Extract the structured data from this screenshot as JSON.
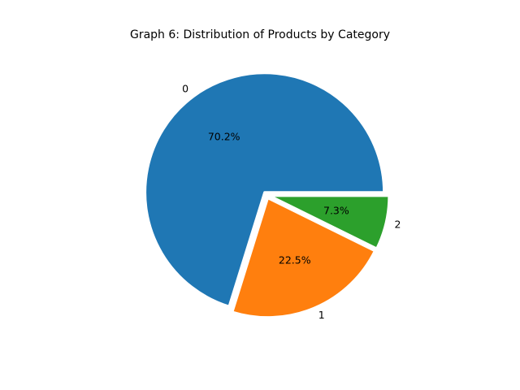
{
  "chart_data": {
    "type": "pie",
    "title": "Graph 6: Distribution of Products by Category",
    "labels": [
      "0",
      "1",
      "2"
    ],
    "values": [
      70.2,
      22.5,
      7.3
    ],
    "percent_labels": [
      "70.2%",
      "22.5%",
      "7.3%"
    ],
    "colors": [
      "#1f77b4",
      "#ff7f0e",
      "#2ca02c"
    ],
    "start_angle_deg": 0,
    "direction": "counterclockwise",
    "legend": "none"
  }
}
